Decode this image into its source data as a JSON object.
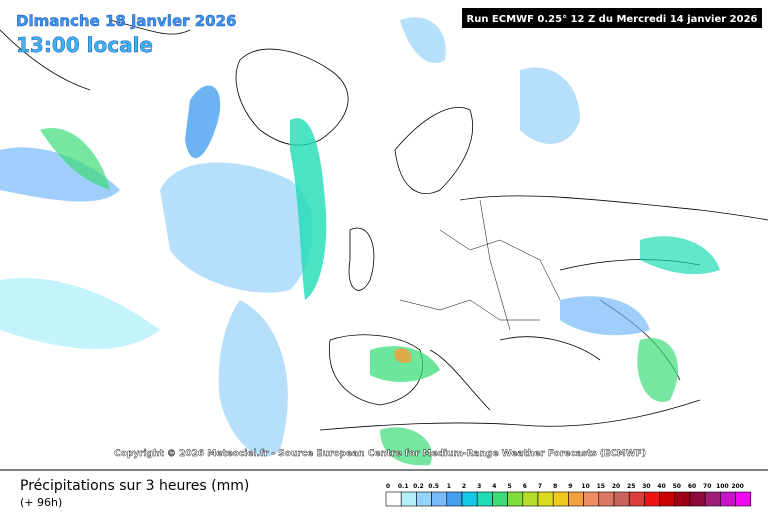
{
  "header": {
    "date": "Dimanche 18 janvier 2026",
    "time": "13:00 locale",
    "run": "Run ECMWF 0.25° 12 Z du Mercredi 14 janvier 2026"
  },
  "copyright": "Copyright © 2026 Meteociel.fr - Source European Centre for Medium-Range Weather Forecasts (ECMWF)",
  "footer": {
    "title": "Précipitations sur 3 heures (mm)",
    "lead": "(+ 96h)"
  },
  "legend": {
    "labels": [
      0,
      0.1,
      0.2,
      0.5,
      1,
      2,
      3,
      4,
      5,
      6,
      7,
      8,
      9,
      10,
      15,
      20,
      25,
      30,
      40,
      50,
      60,
      70,
      100,
      200
    ],
    "colors": [
      "#ffffff",
      "#b4f0fa",
      "#96d2fa",
      "#78b9fa",
      "#46a0f0",
      "#14c8e6",
      "#1edcb4",
      "#3cdc78",
      "#82dc3c",
      "#b4dc28",
      "#dcdc1e",
      "#f0c81e",
      "#f0a03c",
      "#f08c64",
      "#dc7864",
      "#c8645a",
      "#dc3c3c",
      "#f01414",
      "#c80000",
      "#a00014",
      "#8c0a3c",
      "#a01e78",
      "#c814c8",
      "#f00af0"
    ]
  }
}
